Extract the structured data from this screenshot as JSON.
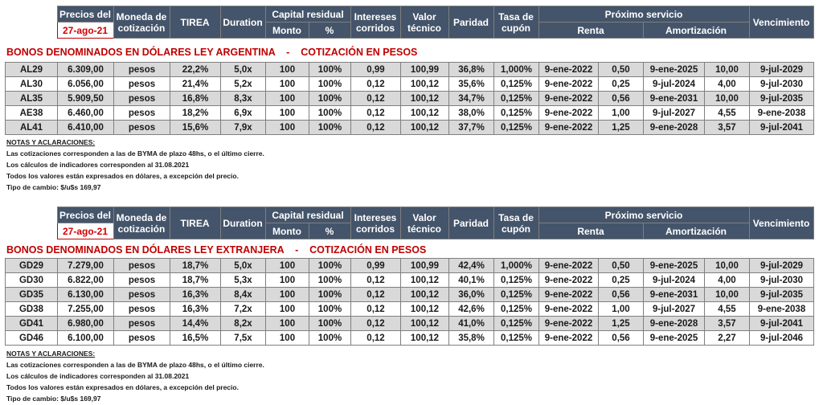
{
  "header": {
    "precios_del": "Precios del",
    "fecha": "27-ago-21",
    "moneda": "Moneda de",
    "cotizacion": "cotización",
    "tirea": "TIREA",
    "duration": "Duration",
    "capital_residual": "Capital residual",
    "monto": "Monto",
    "pct": "%",
    "intereses": "Intereses",
    "corridos": "corridos",
    "valor": "Valor",
    "tecnico": "técnico",
    "paridad": "Paridad",
    "tasa_de": "Tasa de",
    "cupon": "cupón",
    "proximo_servicio": "Próximo servicio",
    "renta": "Renta",
    "amortizacion": "Amortización",
    "vencimiento": "Vencimiento"
  },
  "sections": [
    {
      "title": "BONOS DENOMINADOS EN DÓLARES LEY ARGENTINA    -    COTIZACIÓN EN PESOS",
      "rows": [
        [
          "AL29",
          "6.309,00",
          "pesos",
          "22,2%",
          "5,0x",
          "100",
          "100%",
          "0,99",
          "100,99",
          "36,8%",
          "1,000%",
          "9-ene-2022",
          "0,50",
          "9-ene-2025",
          "10,00",
          "9-jul-2029"
        ],
        [
          "AL30",
          "6.056,00",
          "pesos",
          "21,4%",
          "5,2x",
          "100",
          "100%",
          "0,12",
          "100,12",
          "35,6%",
          "0,125%",
          "9-ene-2022",
          "0,25",
          "9-jul-2024",
          "4,00",
          "9-jul-2030"
        ],
        [
          "AL35",
          "5.909,50",
          "pesos",
          "16,8%",
          "8,3x",
          "100",
          "100%",
          "0,12",
          "100,12",
          "34,7%",
          "0,125%",
          "9-ene-2022",
          "0,56",
          "9-ene-2031",
          "10,00",
          "9-jul-2035"
        ],
        [
          "AE38",
          "6.460,00",
          "pesos",
          "18,2%",
          "6,9x",
          "100",
          "100%",
          "0,12",
          "100,12",
          "38,0%",
          "0,125%",
          "9-ene-2022",
          "1,00",
          "9-jul-2027",
          "4,55",
          "9-ene-2038"
        ],
        [
          "AL41",
          "6.410,00",
          "pesos",
          "15,6%",
          "7,9x",
          "100",
          "100%",
          "0,12",
          "100,12",
          "37,7%",
          "0,125%",
          "9-ene-2022",
          "1,25",
          "9-ene-2028",
          "3,57",
          "9-jul-2041"
        ]
      ]
    },
    {
      "title": "BONOS DENOMINADOS EN DÓLARES LEY EXTRANJERA    -    COTIZACIÓN EN PESOS",
      "rows": [
        [
          "GD29",
          "7.279,00",
          "pesos",
          "18,7%",
          "5,0x",
          "100",
          "100%",
          "0,99",
          "100,99",
          "42,4%",
          "1,000%",
          "9-ene-2022",
          "0,50",
          "9-ene-2025",
          "10,00",
          "9-jul-2029"
        ],
        [
          "GD30",
          "6.822,00",
          "pesos",
          "18,7%",
          "5,3x",
          "100",
          "100%",
          "0,12",
          "100,12",
          "40,1%",
          "0,125%",
          "9-ene-2022",
          "0,25",
          "9-jul-2024",
          "4,00",
          "9-jul-2030"
        ],
        [
          "GD35",
          "6.130,00",
          "pesos",
          "16,3%",
          "8,4x",
          "100",
          "100%",
          "0,12",
          "100,12",
          "36,0%",
          "0,125%",
          "9-ene-2022",
          "0,56",
          "9-ene-2031",
          "10,00",
          "9-jul-2035"
        ],
        [
          "GD38",
          "7.255,00",
          "pesos",
          "16,3%",
          "7,2x",
          "100",
          "100%",
          "0,12",
          "100,12",
          "42,6%",
          "0,125%",
          "9-ene-2022",
          "1,00",
          "9-jul-2027",
          "4,55",
          "9-ene-2038"
        ],
        [
          "GD41",
          "6.980,00",
          "pesos",
          "14,4%",
          "8,2x",
          "100",
          "100%",
          "0,12",
          "100,12",
          "41,0%",
          "0,125%",
          "9-ene-2022",
          "1,25",
          "9-ene-2028",
          "3,57",
          "9-jul-2041"
        ],
        [
          "GD46",
          "6.100,00",
          "pesos",
          "16,5%",
          "7,5x",
          "100",
          "100%",
          "0,12",
          "100,12",
          "35,8%",
          "0,125%",
          "9-ene-2022",
          "0,56",
          "9-ene-2025",
          "2,27",
          "9-jul-2046"
        ]
      ]
    }
  ],
  "notes": {
    "title": "NOTAS Y ACLARACIONES:",
    "lines": [
      "Las cotizaciones corresponden a las de BYMA de plazo 48hs, o el último cierre.",
      "Los cálculos de indicadores corresponden al 31.08.2021",
      "Todos los valores están expresados en dólares, a excepción del precio.",
      "Tipo de cambio: $/u$s 169,97"
    ]
  },
  "colors": {
    "header_bg": "#44546a",
    "header_text": "#ffffff",
    "title_red": "#c00000",
    "stripe": "#d9d9d9"
  }
}
